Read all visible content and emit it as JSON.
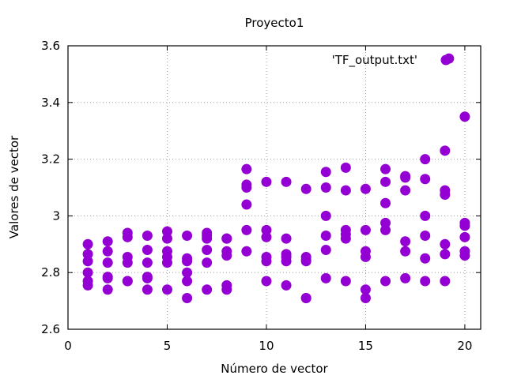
{
  "chart_data": {
    "type": "scatter",
    "title": "Proyecto1",
    "xlabel": "Número de vector",
    "ylabel": "Valores de vector",
    "xlim": [
      0,
      20.8
    ],
    "ylim": [
      2.6,
      3.6
    ],
    "xticks": [
      0,
      5,
      10,
      15,
      20
    ],
    "xtick_labels": [
      "0",
      "5",
      "10",
      "15",
      "20"
    ],
    "yticks": [
      2.6,
      2.8,
      3.0,
      3.2,
      3.4,
      3.6
    ],
    "ytick_labels": [
      "2.6",
      "2.8",
      "3",
      "3.2",
      "3.4",
      "3.6"
    ],
    "grid": true,
    "legend_position": "top-right",
    "series": [
      {
        "name": "'TF_output.txt'",
        "color": "#9400d3",
        "x": [
          1,
          1,
          1,
          1,
          1,
          1,
          2,
          2,
          2,
          2,
          2,
          2,
          3,
          3,
          3,
          3,
          3,
          3,
          4,
          4,
          4,
          4,
          4,
          4,
          5,
          5,
          5,
          5,
          5,
          5,
          6,
          6,
          6,
          6,
          6,
          6,
          7,
          7,
          7,
          7,
          7,
          7,
          8,
          8,
          8,
          8,
          8,
          8,
          9,
          9,
          9,
          9,
          9,
          9,
          10,
          10,
          10,
          10,
          10,
          10,
          11,
          11,
          11,
          11,
          11,
          11,
          12,
          12,
          12,
          12,
          12,
          12,
          13,
          13,
          13,
          13,
          13,
          13,
          14,
          14,
          14,
          14,
          14,
          14,
          15,
          15,
          15,
          15,
          15,
          15,
          16,
          16,
          16,
          16,
          16,
          16,
          17,
          17,
          17,
          17,
          17,
          17,
          18,
          18,
          18,
          18,
          18,
          18,
          19,
          19,
          19,
          19,
          19,
          19,
          20,
          20,
          20,
          20,
          20,
          20,
          19.2
        ],
        "y": [
          2.9,
          2.865,
          2.84,
          2.8,
          2.77,
          2.755,
          2.91,
          2.875,
          2.835,
          2.785,
          2.78,
          2.74,
          2.94,
          2.925,
          2.855,
          2.835,
          2.77,
          2.77,
          2.93,
          2.88,
          2.835,
          2.785,
          2.78,
          2.74,
          2.945,
          2.92,
          2.875,
          2.855,
          2.835,
          2.74,
          2.93,
          2.85,
          2.84,
          2.8,
          2.77,
          2.71,
          2.94,
          2.93,
          2.92,
          2.88,
          2.835,
          2.74,
          2.92,
          2.875,
          2.86,
          2.755,
          2.74,
          2.92,
          3.165,
          3.11,
          3.1,
          3.04,
          2.95,
          2.875,
          3.12,
          2.95,
          2.925,
          2.855,
          2.84,
          2.77,
          3.12,
          2.92,
          2.865,
          2.855,
          2.84,
          2.755,
          3.095,
          2.855,
          2.845,
          2.84,
          2.71,
          2.71,
          3.155,
          3.1,
          3.0,
          2.93,
          2.88,
          2.78,
          3.17,
          3.09,
          2.95,
          2.935,
          2.92,
          2.77,
          3.095,
          2.95,
          2.875,
          2.855,
          2.74,
          2.71,
          3.165,
          3.12,
          3.045,
          2.975,
          2.95,
          2.77,
          3.14,
          3.135,
          3.09,
          2.91,
          2.875,
          2.78,
          3.2,
          3.13,
          3.0,
          2.93,
          2.85,
          2.77,
          3.23,
          3.09,
          3.075,
          2.9,
          2.865,
          2.77,
          3.35,
          2.975,
          2.965,
          2.925,
          2.875,
          2.86,
          3.555
        ]
      }
    ]
  }
}
